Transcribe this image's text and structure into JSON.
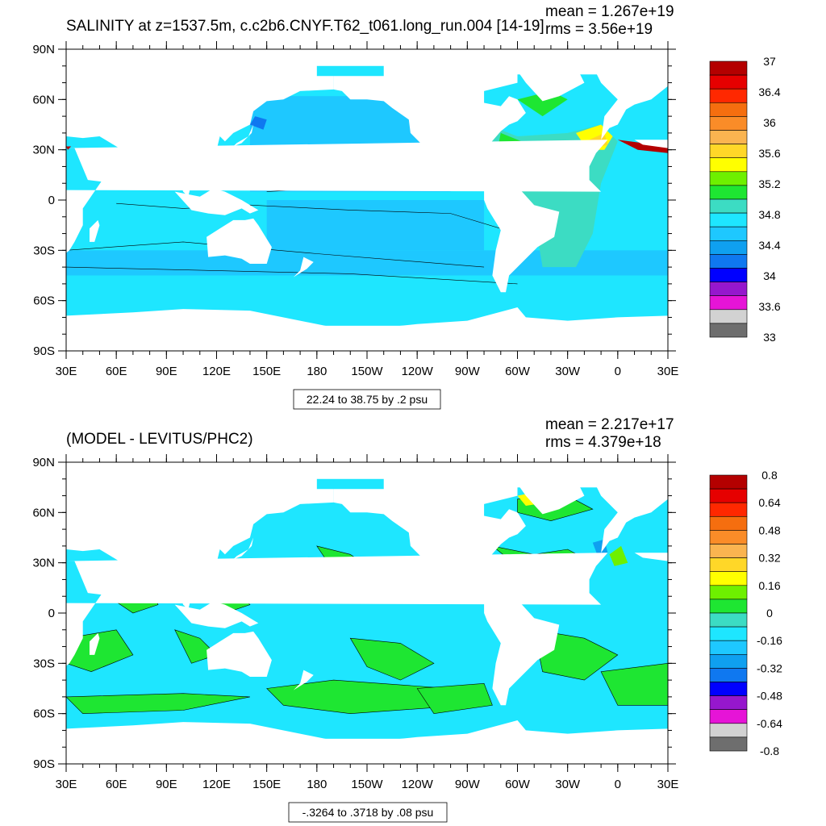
{
  "colorbar_colors": [
    "#6e6e6e",
    "#d2d2d2",
    "#e614d7",
    "#9617cd",
    "#0000ff",
    "#0f78f0",
    "#0fa0f0",
    "#1ec8ff",
    "#1ee6ff",
    "#3cdcc3",
    "#1ee632",
    "#6ef000",
    "#ffff00",
    "#ffd728",
    "#fab450",
    "#fa8c28",
    "#f56e0f",
    "#ff2800",
    "#e60000",
    "#b40000"
  ],
  "land_color": "#ffffff",
  "ocean_base_colors": [
    "#1ee6ff",
    "#3cdcc3"
  ],
  "chart_data": [
    {
      "type": "heatmap",
      "title": "SALINITY at z=1537.5m, c.c2b6.CNYF.T62_t061.long_run.004 [14-19]",
      "stats": {
        "mean": "mean = 1.267e+19",
        "rms": "rms = 3.56e+19"
      },
      "caption": "22.24 to 38.75 by .2 psu",
      "x_ticks": [
        "30E",
        "60E",
        "90E",
        "120E",
        "150E",
        "180",
        "150W",
        "120W",
        "90W",
        "60W",
        "30W",
        "0",
        "30E"
      ],
      "y_ticks": [
        "90N",
        "60N",
        "30N",
        "0",
        "30S",
        "60S",
        "90S"
      ],
      "xlim": [
        30,
        390
      ],
      "ylim": [
        -90,
        90
      ],
      "colorbar_labels": [
        "37",
        "36.4",
        "36",
        "35.6",
        "35.2",
        "34.8",
        "34.4",
        "34",
        "33.6",
        "33"
      ]
    },
    {
      "type": "heatmap",
      "title": "(MODEL - LEVITUS/PHC2)",
      "stats": {
        "mean": "mean = 2.217e+17",
        "rms": "rms = 4.379e+18"
      },
      "caption": "-.3264 to .3718 by .08 psu",
      "x_ticks": [
        "30E",
        "60E",
        "90E",
        "120E",
        "150E",
        "180",
        "150W",
        "120W",
        "90W",
        "60W",
        "30W",
        "0",
        "30E"
      ],
      "y_ticks": [
        "90N",
        "60N",
        "30N",
        "0",
        "30S",
        "60S",
        "90S"
      ],
      "xlim": [
        30,
        390
      ],
      "ylim": [
        -90,
        90
      ],
      "colorbar_labels": [
        "0.8",
        "0.64",
        "0.48",
        "0.32",
        "0.16",
        "0",
        "-0.16",
        "-0.32",
        "-0.48",
        "-0.64",
        "-0.8"
      ]
    }
  ]
}
